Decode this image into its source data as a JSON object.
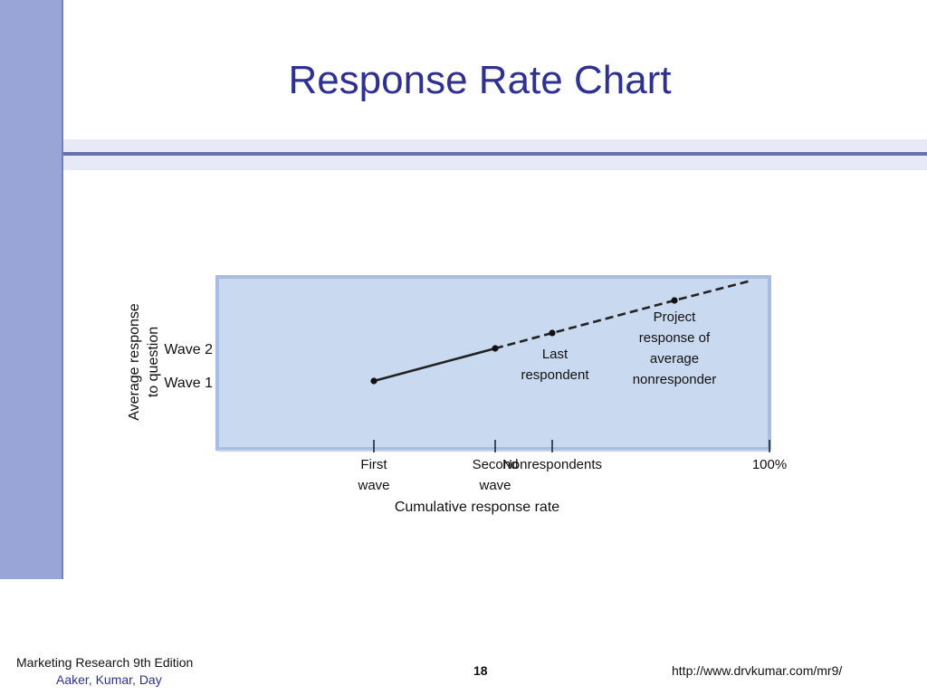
{
  "slide": {
    "title": "Response Rate Chart",
    "footer": {
      "book": "Marketing Research 9th Edition",
      "authors": "Aaker, Kumar, Day",
      "page": "18",
      "url": "http://www.drvkumar.com/mr9/"
    }
  },
  "chart_data": {
    "type": "line",
    "ylabel_lines": [
      "Average response",
      "to question"
    ],
    "xlabel": "Cumulative response rate",
    "x_ticks": [
      {
        "lines": [
          "First",
          "wave"
        ]
      },
      {
        "lines": [
          "Second",
          "wave"
        ]
      },
      {
        "lines": [
          "Nonrespondents"
        ]
      },
      {
        "lines": [
          "100%"
        ]
      }
    ],
    "y_ticks": [
      "Wave 2",
      "Wave 1"
    ],
    "series": [
      {
        "style": "solid",
        "points": [
          "First wave",
          "Second wave"
        ]
      },
      {
        "style": "dashed",
        "points": [
          "Second wave",
          "Nonrespondents",
          "Project response of average nonresponder",
          "100%"
        ]
      }
    ],
    "annotations": [
      {
        "lines": [
          "Last",
          "respondent"
        ]
      },
      {
        "lines": [
          "Project",
          "response of",
          "average",
          "nonresponder"
        ]
      }
    ],
    "colors": {
      "plot_background": "#c9d9ef",
      "plot_border": "#a8bde0",
      "line": "#222222"
    }
  }
}
